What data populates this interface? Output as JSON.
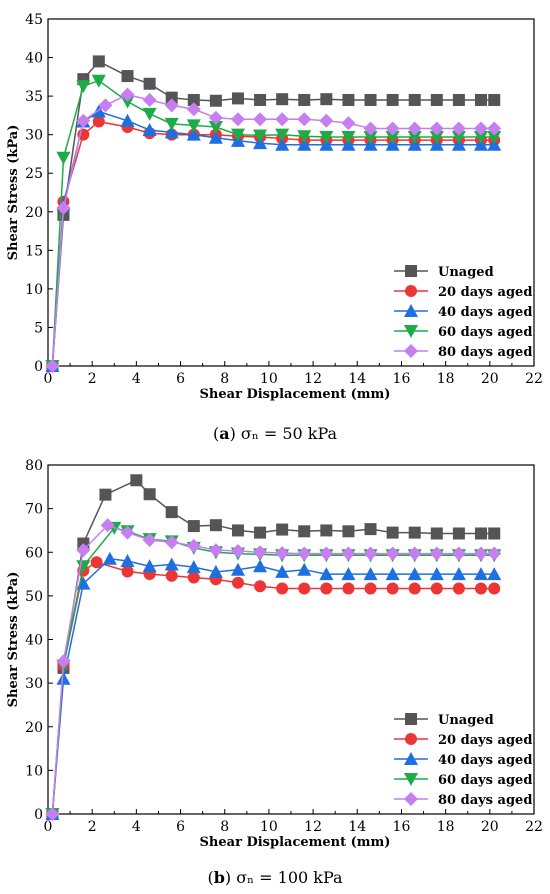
{
  "chart_data": [
    {
      "type": "line",
      "caption": {
        "letter": "a",
        "text": " σₙ = 50 kPa"
      },
      "xlabel": "Shear Displacement (mm)",
      "ylabel": "Shear Stress (kPa)",
      "xlim": [
        0,
        22
      ],
      "ylim": [
        0,
        45
      ],
      "xticks": [
        0,
        2,
        4,
        6,
        8,
        10,
        12,
        14,
        16,
        18,
        20,
        22
      ],
      "yticks": [
        0,
        5,
        10,
        15,
        20,
        25,
        30,
        35,
        40,
        45
      ],
      "grid": false,
      "legend_position": "bottom-right",
      "series": [
        {
          "name": "Unaged",
          "color": "#555555",
          "marker": "square",
          "x": [
            0.2,
            0.7,
            1.6,
            2.3,
            3.6,
            4.6,
            5.6,
            6.6,
            7.6,
            8.6,
            9.6,
            10.6,
            11.6,
            12.6,
            13.6,
            14.6,
            15.6,
            16.6,
            17.6,
            18.6,
            19.6,
            20.2
          ],
          "y": [
            0,
            19.6,
            37.2,
            39.5,
            37.6,
            36.6,
            34.8,
            34.5,
            34.4,
            34.7,
            34.5,
            34.6,
            34.5,
            34.6,
            34.5,
            34.5,
            34.5,
            34.5,
            34.5,
            34.5,
            34.5,
            34.5
          ]
        },
        {
          "name": "20 days aged",
          "color": "#ee3535",
          "marker": "circle",
          "x": [
            0.2,
            0.7,
            1.6,
            2.3,
            3.6,
            4.6,
            5.6,
            6.6,
            7.6,
            8.6,
            9.6,
            10.6,
            11.6,
            12.6,
            13.6,
            14.6,
            15.6,
            16.6,
            17.6,
            18.6,
            19.6,
            20.2
          ],
          "y": [
            0,
            21.3,
            30.0,
            31.7,
            31.0,
            30.2,
            30.0,
            30.0,
            30.0,
            29.8,
            29.7,
            29.5,
            29.3,
            29.3,
            29.3,
            29.3,
            29.3,
            29.3,
            29.3,
            29.3,
            29.3,
            29.3
          ]
        },
        {
          "name": "40 days aged",
          "color": "#1e6fe0",
          "marker": "triangle-up",
          "x": [
            0.2,
            0.7,
            1.6,
            2.3,
            3.6,
            4.6,
            5.6,
            6.6,
            7.6,
            8.6,
            9.6,
            10.6,
            11.6,
            12.6,
            13.6,
            14.6,
            15.6,
            16.6,
            17.6,
            18.6,
            19.6,
            20.2
          ],
          "y": [
            0,
            21.0,
            31.7,
            33.0,
            31.8,
            30.6,
            30.3,
            30.0,
            29.6,
            29.2,
            28.9,
            28.7,
            28.7,
            28.7,
            28.7,
            28.7,
            28.7,
            28.7,
            28.7,
            28.7,
            28.7,
            28.7
          ]
        },
        {
          "name": "60 days aged",
          "color": "#1cab48",
          "marker": "triangle-down",
          "x": [
            0.2,
            0.7,
            1.6,
            2.3,
            3.6,
            4.6,
            5.6,
            6.6,
            7.6,
            8.6,
            9.6,
            10.6,
            11.6,
            12.6,
            13.6,
            14.6,
            15.6,
            16.6,
            17.6,
            18.6,
            19.6,
            20.2
          ],
          "y": [
            0,
            27.0,
            36.3,
            37.0,
            34.3,
            32.7,
            31.4,
            31.2,
            31.0,
            30.0,
            29.9,
            30.0,
            29.8,
            29.7,
            29.7,
            29.7,
            29.7,
            29.7,
            29.7,
            29.7,
            29.7,
            29.7
          ]
        },
        {
          "name": "80 days aged",
          "color": "#c77ef0",
          "marker": "diamond",
          "x": [
            0.2,
            0.7,
            1.6,
            2.6,
            3.6,
            4.6,
            5.6,
            6.6,
            7.6,
            8.6,
            9.6,
            10.6,
            11.6,
            12.6,
            13.6,
            14.6,
            15.6,
            16.6,
            17.6,
            18.6,
            19.6,
            20.2
          ],
          "y": [
            0,
            20.5,
            31.8,
            33.8,
            35.2,
            34.5,
            33.8,
            33.3,
            32.2,
            32.0,
            32.0,
            32.0,
            32.0,
            31.8,
            31.5,
            30.8,
            30.8,
            30.8,
            30.8,
            30.8,
            30.8,
            30.8
          ]
        }
      ]
    },
    {
      "type": "line",
      "caption": {
        "letter": "b",
        "text": " σₙ = 100 kPa"
      },
      "xlabel": "Shear Displacement (mm)",
      "ylabel": "Shear Stress (kPa)",
      "xlim": [
        0,
        22
      ],
      "ylim": [
        0,
        80
      ],
      "xticks": [
        0,
        2,
        4,
        6,
        8,
        10,
        12,
        14,
        16,
        18,
        20,
        22
      ],
      "yticks": [
        0,
        10,
        20,
        30,
        40,
        50,
        60,
        70,
        80
      ],
      "grid": false,
      "legend_position": "bottom-right",
      "series": [
        {
          "name": "Unaged",
          "color": "#555555",
          "marker": "square",
          "x": [
            0.2,
            0.7,
            1.6,
            2.6,
            4.0,
            4.6,
            5.6,
            6.6,
            7.6,
            8.6,
            9.6,
            10.6,
            11.6,
            12.6,
            13.6,
            14.6,
            15.6,
            16.6,
            17.6,
            18.6,
            19.6,
            20.2
          ],
          "y": [
            0,
            33.5,
            62.0,
            73.2,
            76.5,
            73.3,
            69.2,
            66.0,
            66.2,
            65.0,
            64.5,
            65.2,
            64.8,
            65.0,
            64.8,
            65.3,
            64.5,
            64.5,
            64.3,
            64.3,
            64.3,
            64.3
          ]
        },
        {
          "name": "20 days aged",
          "color": "#ee3535",
          "marker": "circle",
          "x": [
            0.2,
            0.7,
            1.6,
            2.2,
            3.6,
            4.6,
            5.6,
            6.6,
            7.6,
            8.6,
            9.6,
            10.6,
            11.6,
            12.6,
            13.6,
            14.6,
            15.6,
            16.6,
            17.6,
            18.6,
            19.6,
            20.2
          ],
          "y": [
            0,
            34.0,
            55.8,
            57.7,
            55.6,
            55.0,
            54.6,
            54.2,
            53.8,
            53.0,
            52.2,
            51.7,
            51.7,
            51.7,
            51.7,
            51.7,
            51.7,
            51.7,
            51.7,
            51.7,
            51.7,
            51.7
          ]
        },
        {
          "name": "40 days aged",
          "color": "#1e6fe0",
          "marker": "triangle-up",
          "x": [
            0.2,
            0.7,
            1.6,
            2.8,
            3.6,
            4.6,
            5.6,
            6.6,
            7.6,
            8.6,
            9.6,
            10.6,
            11.6,
            12.6,
            13.6,
            14.6,
            15.6,
            16.6,
            17.6,
            18.6,
            19.6,
            20.2
          ],
          "y": [
            0,
            31.0,
            52.8,
            58.5,
            58.0,
            56.8,
            57.2,
            56.6,
            55.5,
            56.0,
            56.8,
            55.5,
            56.0,
            55.0,
            55.0,
            55.0,
            55.0,
            55.0,
            55.0,
            55.0,
            55.0,
            55.0
          ]
        },
        {
          "name": "60 days aged",
          "color": "#1cab48",
          "marker": "triangle-down",
          "x": [
            0.2,
            0.7,
            1.6,
            3.0,
            3.6,
            4.6,
            5.6,
            6.6,
            7.6,
            8.6,
            9.6,
            10.6,
            11.6,
            12.6,
            13.6,
            14.6,
            15.6,
            16.6,
            17.6,
            18.6,
            19.6,
            20.2
          ],
          "y": [
            0,
            34.0,
            56.8,
            65.6,
            64.8,
            63.0,
            62.5,
            61.0,
            60.0,
            59.7,
            59.5,
            59.3,
            59.3,
            59.3,
            59.3,
            59.3,
            59.3,
            59.3,
            59.3,
            59.3,
            59.3,
            59.3
          ]
        },
        {
          "name": "80 days aged",
          "color": "#c77ef0",
          "marker": "diamond",
          "x": [
            0.2,
            0.7,
            1.6,
            2.7,
            3.6,
            4.6,
            5.6,
            6.6,
            7.6,
            8.6,
            9.6,
            10.6,
            11.6,
            12.6,
            13.6,
            14.6,
            15.6,
            16.6,
            17.6,
            18.6,
            19.6,
            20.2
          ],
          "y": [
            0,
            35.0,
            60.5,
            66.2,
            64.5,
            62.8,
            62.3,
            61.5,
            60.5,
            60.3,
            60.0,
            59.8,
            59.7,
            59.7,
            59.7,
            59.7,
            59.7,
            59.7,
            59.7,
            59.7,
            59.7,
            59.7
          ]
        }
      ]
    }
  ]
}
